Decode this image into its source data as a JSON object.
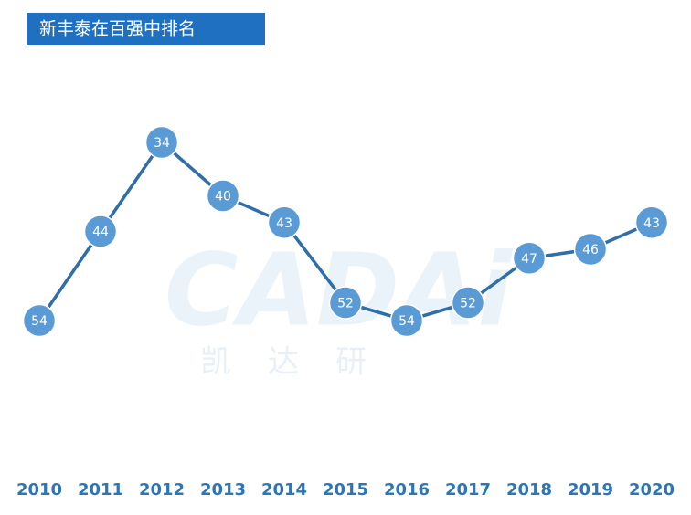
{
  "chart_data": {
    "type": "line",
    "title": "新丰泰在百强中排名",
    "watermark": "CADAi",
    "watermark_sub": "凯达研",
    "categories": [
      "2010",
      "2011",
      "2012",
      "2013",
      "2014",
      "2015",
      "2016",
      "2017",
      "2018",
      "2019",
      "2020"
    ],
    "values": [
      54,
      44,
      34,
      40,
      43,
      52,
      54,
      52,
      47,
      46,
      43
    ],
    "color": "#2f6ea8",
    "marker_color": "#5b9bd5",
    "y_inverted": true
  }
}
